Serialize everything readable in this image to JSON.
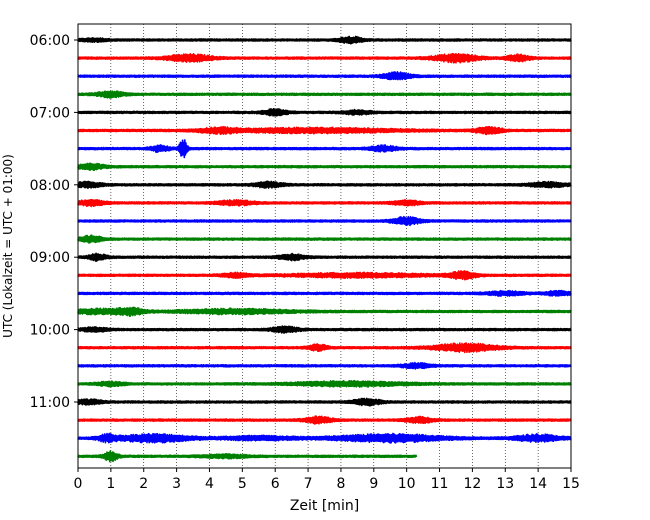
{
  "chart_data": {
    "type": "line",
    "title": "",
    "xlabel": "Zeit  [min]",
    "ylabel": "UTC (Lokalzeit = UTC + 01:00)",
    "xlim": [
      0,
      15
    ],
    "x_ticks": [
      "0",
      "1",
      "2",
      "3",
      "4",
      "5",
      "6",
      "7",
      "8",
      "9",
      "10",
      "11",
      "12",
      "13",
      "14",
      "15"
    ],
    "y_ticks": [
      "06:00",
      "07:00",
      "08:00",
      "09:00",
      "10:00",
      "11:00"
    ],
    "grid": "vertical dotted",
    "trace_interval_min": 15,
    "colors": [
      "#000000",
      "#ff0000",
      "#0000ff",
      "#008000"
    ],
    "traces": [
      {
        "start": "06:00",
        "color": "#000000",
        "end_min": 15,
        "events": [
          {
            "t": 0.5,
            "a": 0.35,
            "w": 0.3
          },
          {
            "t": 8.3,
            "a": 0.8,
            "w": 0.25
          }
        ]
      },
      {
        "start": "06:15",
        "color": "#ff0000",
        "end_min": 15,
        "events": [
          {
            "t": 3.4,
            "a": 0.9,
            "w": 0.5
          },
          {
            "t": 11.5,
            "a": 1.0,
            "w": 0.5
          },
          {
            "t": 13.4,
            "a": 0.8,
            "w": 0.25
          }
        ]
      },
      {
        "start": "06:30",
        "color": "#0000ff",
        "end_min": 15,
        "events": [
          {
            "t": 9.7,
            "a": 0.9,
            "w": 0.3
          }
        ]
      },
      {
        "start": "06:45",
        "color": "#008000",
        "end_min": 15,
        "events": [
          {
            "t": 1.0,
            "a": 0.7,
            "w": 0.3
          }
        ]
      },
      {
        "start": "07:00",
        "color": "#000000",
        "end_min": 15,
        "events": [
          {
            "t": 6.0,
            "a": 0.8,
            "w": 0.25
          },
          {
            "t": 8.5,
            "a": 0.5,
            "w": 0.3
          }
        ]
      },
      {
        "start": "07:15",
        "color": "#ff0000",
        "end_min": 15,
        "events": [
          {
            "t": 4.3,
            "a": 0.6,
            "w": 0.4
          },
          {
            "t": 7.2,
            "a": 0.6,
            "w": 1.8
          },
          {
            "t": 12.5,
            "a": 0.8,
            "w": 0.3
          }
        ]
      },
      {
        "start": "07:30",
        "color": "#0000ff",
        "end_min": 15,
        "events": [
          {
            "t": 2.5,
            "a": 0.8,
            "w": 0.2
          },
          {
            "t": 3.2,
            "a": 2.5,
            "w": 0.08
          },
          {
            "t": 9.3,
            "a": 0.7,
            "w": 0.3
          }
        ]
      },
      {
        "start": "07:45",
        "color": "#008000",
        "end_min": 15,
        "events": [
          {
            "t": 0.4,
            "a": 0.7,
            "w": 0.3
          }
        ]
      },
      {
        "start": "08:00",
        "color": "#000000",
        "end_min": 15,
        "events": [
          {
            "t": 0.3,
            "a": 0.7,
            "w": 0.3
          },
          {
            "t": 5.8,
            "a": 0.7,
            "w": 0.3
          },
          {
            "t": 14.3,
            "a": 0.6,
            "w": 0.4
          }
        ]
      },
      {
        "start": "08:15",
        "color": "#ff0000",
        "end_min": 15,
        "events": [
          {
            "t": 0.4,
            "a": 0.7,
            "w": 0.3
          },
          {
            "t": 4.8,
            "a": 0.6,
            "w": 0.4
          },
          {
            "t": 10.0,
            "a": 0.6,
            "w": 0.3
          }
        ]
      },
      {
        "start": "08:30",
        "color": "#0000ff",
        "end_min": 15,
        "events": [
          {
            "t": 10.0,
            "a": 1.0,
            "w": 0.3
          }
        ]
      },
      {
        "start": "08:45",
        "color": "#008000",
        "end_min": 15,
        "events": [
          {
            "t": 0.4,
            "a": 0.8,
            "w": 0.25
          }
        ]
      },
      {
        "start": "09:00",
        "color": "#000000",
        "end_min": 15,
        "events": [
          {
            "t": 0.6,
            "a": 0.8,
            "w": 0.2
          },
          {
            "t": 6.5,
            "a": 0.7,
            "w": 0.3
          }
        ]
      },
      {
        "start": "09:15",
        "color": "#ff0000",
        "end_min": 15,
        "events": [
          {
            "t": 4.8,
            "a": 0.5,
            "w": 0.3
          },
          {
            "t": 8.5,
            "a": 0.5,
            "w": 1.5
          },
          {
            "t": 11.7,
            "a": 0.9,
            "w": 0.3
          }
        ]
      },
      {
        "start": "09:30",
        "color": "#0000ff",
        "end_min": 15,
        "events": [
          {
            "t": 13.0,
            "a": 0.5,
            "w": 0.4
          },
          {
            "t": 14.6,
            "a": 0.5,
            "w": 0.3
          }
        ]
      },
      {
        "start": "09:45",
        "color": "#008000",
        "end_min": 15,
        "events": [
          {
            "t": 0.6,
            "a": 0.6,
            "w": 0.6
          },
          {
            "t": 1.6,
            "a": 0.8,
            "w": 0.3
          },
          {
            "t": 4.8,
            "a": 0.6,
            "w": 1.2
          }
        ]
      },
      {
        "start": "10:00",
        "color": "#000000",
        "end_min": 15,
        "events": [
          {
            "t": 0.5,
            "a": 0.5,
            "w": 0.3
          },
          {
            "t": 6.3,
            "a": 0.7,
            "w": 0.3
          }
        ]
      },
      {
        "start": "10:15",
        "color": "#ff0000",
        "end_min": 15,
        "events": [
          {
            "t": 7.3,
            "a": 0.8,
            "w": 0.2
          },
          {
            "t": 11.8,
            "a": 1.0,
            "w": 0.7
          }
        ]
      },
      {
        "start": "10:30",
        "color": "#0000ff",
        "end_min": 15,
        "events": [
          {
            "t": 10.3,
            "a": 0.6,
            "w": 0.3
          }
        ]
      },
      {
        "start": "10:45",
        "color": "#008000",
        "end_min": 15,
        "events": [
          {
            "t": 1.0,
            "a": 0.5,
            "w": 0.3
          },
          {
            "t": 8.3,
            "a": 0.6,
            "w": 1.2
          }
        ]
      },
      {
        "start": "11:00",
        "color": "#000000",
        "end_min": 15,
        "events": [
          {
            "t": 0.3,
            "a": 0.6,
            "w": 0.3
          },
          {
            "t": 8.8,
            "a": 0.8,
            "w": 0.3
          }
        ]
      },
      {
        "start": "11:15",
        "color": "#ff0000",
        "end_min": 15,
        "events": [
          {
            "t": 7.3,
            "a": 0.8,
            "w": 0.3
          },
          {
            "t": 10.4,
            "a": 0.7,
            "w": 0.3
          }
        ]
      },
      {
        "start": "11:30",
        "color": "#0000ff",
        "end_min": 15,
        "events": [
          {
            "t": 0.9,
            "a": 0.8,
            "w": 0.2
          },
          {
            "t": 2.3,
            "a": 1.0,
            "w": 0.8
          },
          {
            "t": 5.5,
            "a": 0.5,
            "w": 0.8
          },
          {
            "t": 9.5,
            "a": 1.0,
            "w": 1.2
          },
          {
            "t": 14.0,
            "a": 0.9,
            "w": 0.5
          }
        ]
      },
      {
        "start": "11:45",
        "color": "#008000",
        "end_min": 10.3,
        "events": [
          {
            "t": 1.0,
            "a": 1.2,
            "w": 0.15
          },
          {
            "t": 4.5,
            "a": 0.4,
            "w": 0.5
          }
        ]
      }
    ]
  }
}
